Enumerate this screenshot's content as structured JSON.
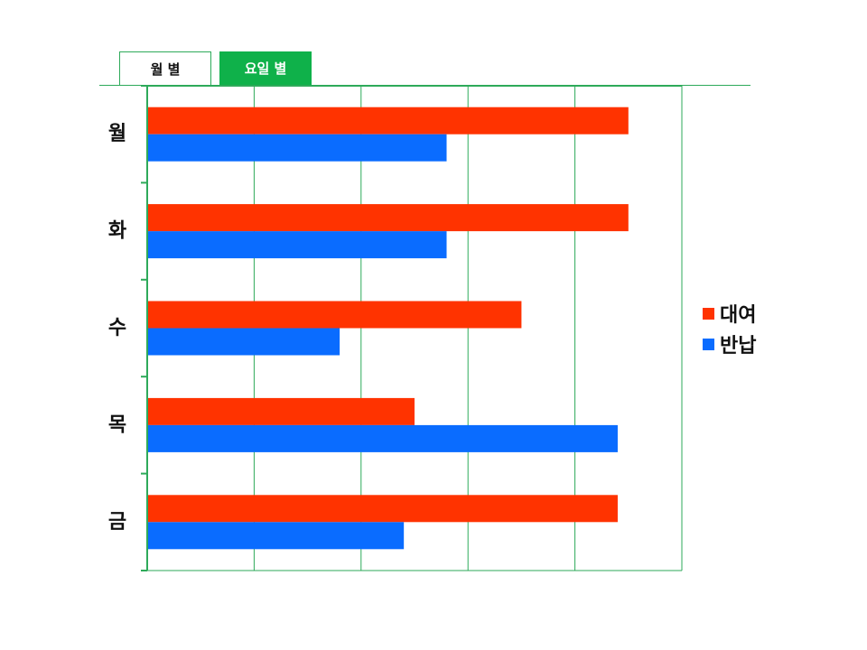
{
  "tabs": [
    {
      "label": "월 별",
      "active": false
    },
    {
      "label": "요일 별",
      "active": true
    }
  ],
  "colors": {
    "accent": "#0fb14a",
    "grid": "#2eaa5a",
    "rental": "#ff3300",
    "return": "#0a6cff"
  },
  "chart_data": {
    "type": "bar",
    "orientation": "horizontal",
    "categories": [
      "월",
      "화",
      "수",
      "목",
      "금"
    ],
    "series": [
      {
        "name": "대여",
        "color": "#ff3300",
        "values": [
          4.5,
          4.5,
          3.5,
          2.5,
          4.4
        ]
      },
      {
        "name": "반납",
        "color": "#0a6cff",
        "values": [
          2.8,
          2.8,
          1.8,
          4.4,
          2.4
        ]
      }
    ],
    "xlim": [
      0,
      5
    ],
    "grid": true,
    "legend": "right",
    "title": "",
    "xlabel": "",
    "ylabel": ""
  }
}
